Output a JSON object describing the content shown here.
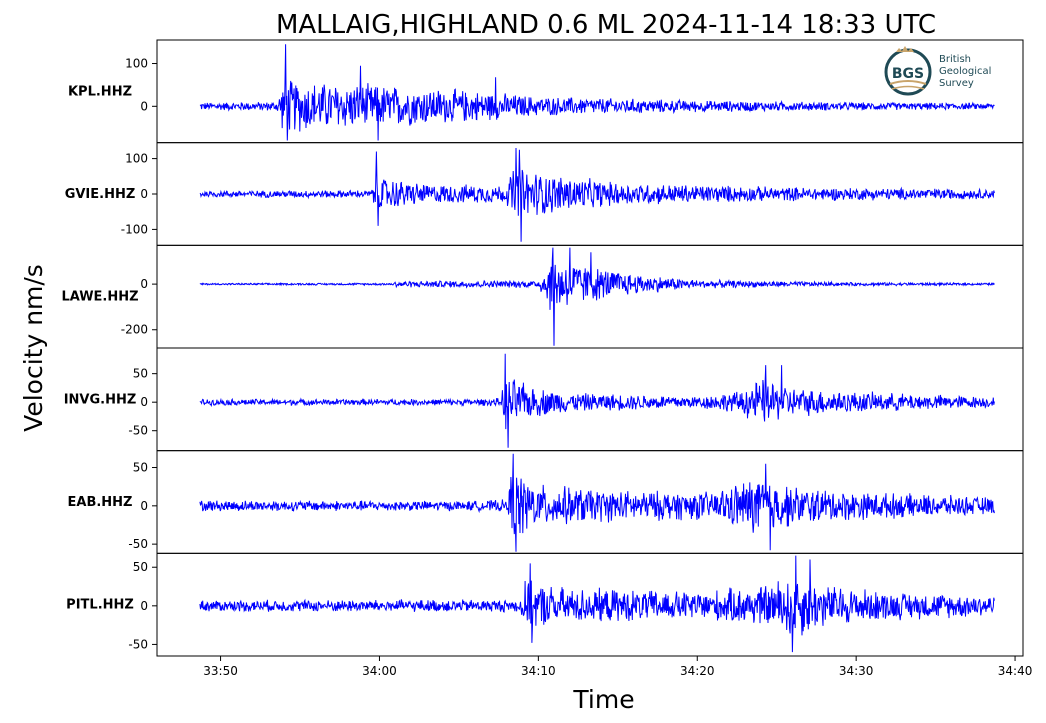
{
  "title": "MALLAIG,HIGHLAND 0.6 ML   2024-11-14 18:33 UTC",
  "ylabel": "Velocity nm/s",
  "xlabel": "Time",
  "logo": {
    "mark": "BGS",
    "line1": "British",
    "line2": "Geological",
    "line3": "Survey",
    "color": "#1f4a55",
    "accent": "#c9a46a"
  },
  "colors": {
    "trace": "#0000ff",
    "axis": "#000000",
    "background": "#ffffff"
  },
  "chart_data": {
    "type": "line",
    "x_unit": "mm:ss after 18:00 UTC",
    "xlim": [
      "33:46",
      "34:40.5"
    ],
    "x_ticks": [
      "33:50",
      "34:00",
      "34:10",
      "34:20",
      "34:30",
      "34:40"
    ],
    "trace_window": [
      "33:48.7",
      "34:38.7"
    ],
    "grid": false,
    "series": [
      {
        "name": "KPL.HHZ",
        "ylim": [
          -85,
          155
        ],
        "y_ticks": [
          100,
          0
        ],
        "y_tick_labels": [
          "100",
          "0"
        ],
        "envelope": [
          [
            48.7,
            10
          ],
          [
            53.5,
            12
          ],
          [
            54.0,
            70
          ],
          [
            57,
            60
          ],
          [
            60,
            55
          ],
          [
            66,
            40
          ],
          [
            70,
            25
          ],
          [
            80,
            15
          ],
          [
            90,
            10
          ],
          [
            98.7,
            8
          ]
        ],
        "spikes": [
          [
            54.1,
            145
          ],
          [
            54.2,
            -80
          ],
          [
            59.9,
            -80
          ],
          [
            58.8,
            95
          ],
          [
            67.3,
            68
          ]
        ]
      },
      {
        "name": "GVIE.HHZ",
        "ylim": [
          -145,
          145
        ],
        "y_ticks": [
          100,
          0,
          -100
        ],
        "y_tick_labels": [
          "100",
          "0",
          "-100"
        ],
        "envelope": [
          [
            48.7,
            10
          ],
          [
            59.5,
            12
          ],
          [
            59.8,
            55
          ],
          [
            63,
            30
          ],
          [
            68,
            28
          ],
          [
            68.4,
            85
          ],
          [
            71,
            60
          ],
          [
            75,
            35
          ],
          [
            85,
            22
          ],
          [
            98.7,
            15
          ]
        ],
        "spikes": [
          [
            59.8,
            120
          ],
          [
            59.9,
            -90
          ],
          [
            68.6,
            130
          ],
          [
            68.9,
            -135
          ],
          [
            68.8,
            125
          ]
        ]
      },
      {
        "name": "LAWE.HHZ",
        "ylim": [
          -280,
          170
        ],
        "y_ticks": [
          0,
          -200
        ],
        "y_tick_labels": [
          "0",
          "-200"
        ],
        "envelope": [
          [
            48.7,
            4
          ],
          [
            60.8,
            5
          ],
          [
            61.0,
            15
          ],
          [
            70,
            18
          ],
          [
            70.8,
            140
          ],
          [
            73,
            90
          ],
          [
            76,
            50
          ],
          [
            80,
            20
          ],
          [
            90,
            8
          ],
          [
            98.7,
            5
          ]
        ],
        "spikes": [
          [
            70.9,
            160
          ],
          [
            71.0,
            -270
          ],
          [
            72.0,
            160
          ],
          [
            73.3,
            140
          ]
        ]
      },
      {
        "name": "INVG.HHZ",
        "ylim": [
          -85,
          95
        ],
        "y_ticks": [
          50,
          0,
          -50
        ],
        "y_tick_labels": [
          "50",
          "0",
          "-50"
        ],
        "envelope": [
          [
            48.7,
            6
          ],
          [
            66,
            6
          ],
          [
            67.7,
            8
          ],
          [
            67.8,
            55
          ],
          [
            69.5,
            30
          ],
          [
            72,
            18
          ],
          [
            80,
            12
          ],
          [
            82.5,
            20
          ],
          [
            84.0,
            45
          ],
          [
            86,
            28
          ],
          [
            90,
            20
          ],
          [
            98.7,
            10
          ]
        ],
        "spikes": [
          [
            67.9,
            85
          ],
          [
            68.1,
            -80
          ],
          [
            84.3,
            65
          ],
          [
            85.3,
            65
          ]
        ]
      },
      {
        "name": "EAB.HHZ",
        "ylim": [
          -62,
          72
        ],
        "y_ticks": [
          50,
          0,
          -50
        ],
        "y_tick_labels": [
          "50",
          "0",
          "-50"
        ],
        "envelope": [
          [
            48.7,
            8
          ],
          [
            66,
            7
          ],
          [
            68.1,
            9
          ],
          [
            68.3,
            55
          ],
          [
            70,
            30
          ],
          [
            75,
            22
          ],
          [
            81,
            20
          ],
          [
            84.0,
            45
          ],
          [
            86,
            28
          ],
          [
            90,
            20
          ],
          [
            98.7,
            12
          ]
        ],
        "spikes": [
          [
            68.4,
            68
          ],
          [
            68.6,
            -60
          ],
          [
            84.3,
            55
          ],
          [
            84.6,
            -58
          ]
        ]
      },
      {
        "name": "PITL.HHZ",
        "ylim": [
          -65,
          68
        ],
        "y_ticks": [
          50,
          0,
          -50
        ],
        "y_tick_labels": [
          "50",
          "0",
          "-50"
        ],
        "envelope": [
          [
            48.7,
            8
          ],
          [
            68.9,
            9
          ],
          [
            69.0,
            35
          ],
          [
            72,
            25
          ],
          [
            80,
            20
          ],
          [
            84.5,
            30
          ],
          [
            86,
            50
          ],
          [
            88,
            30
          ],
          [
            92,
            20
          ],
          [
            98.7,
            15
          ]
        ],
        "spikes": [
          [
            69.5,
            55
          ],
          [
            69.6,
            -48
          ],
          [
            86.0,
            -60
          ],
          [
            86.2,
            65
          ],
          [
            87.1,
            60
          ]
        ]
      }
    ]
  }
}
